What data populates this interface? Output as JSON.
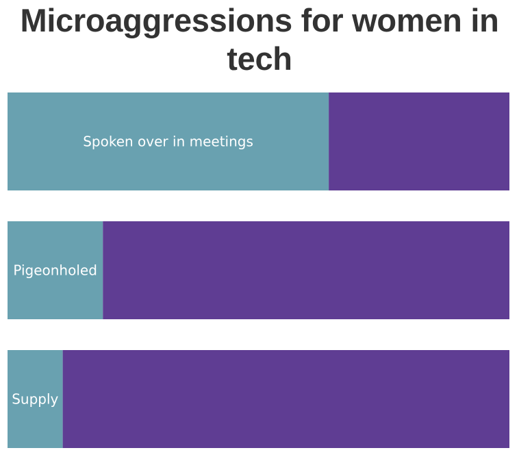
{
  "chart_data": {
    "type": "bar",
    "orientation": "horizontal",
    "stacked": true,
    "normalized": true,
    "title": "Microaggressions for women in tech",
    "categories": [
      "Spoken over in meetings",
      "Pigeonholed",
      "Supply"
    ],
    "series": [
      {
        "values": [
          0.64,
          0.19,
          0.11
        ],
        "color": "#69a1b0"
      },
      {
        "values": [
          0.36,
          0.81,
          0.89
        ],
        "color": "#5f3d93"
      }
    ],
    "grid": false,
    "legend": "none"
  }
}
